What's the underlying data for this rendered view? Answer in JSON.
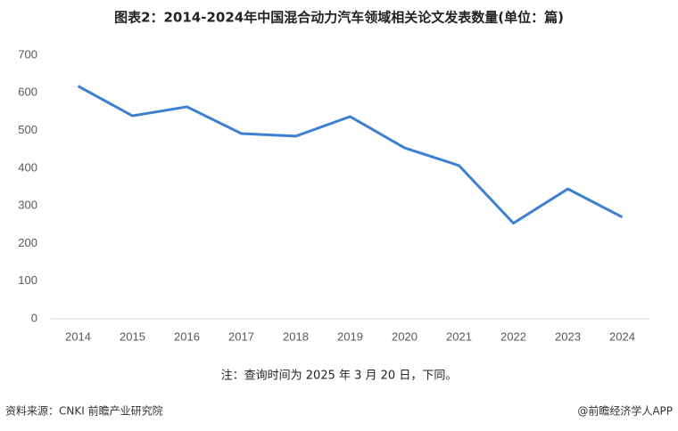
{
  "chart_data": {
    "type": "line",
    "title": "图表2：2014-2024年中国混合动力汽车领域相关论文发表数量(单位：篇)",
    "categories": [
      "2014",
      "2015",
      "2016",
      "2017",
      "2018",
      "2019",
      "2020",
      "2021",
      "2022",
      "2023",
      "2024"
    ],
    "series": [
      {
        "name": "论文发表数量",
        "color": "#3d7fd1",
        "values": [
          618,
          539,
          563,
          492,
          485,
          537,
          454,
          407,
          254,
          345,
          270
        ]
      }
    ],
    "ylim": [
      0,
      700
    ],
    "yticks": [
      0,
      100,
      200,
      300,
      400,
      500,
      600,
      700
    ],
    "note": "注：查询时间为 2025 年 3 月 20 日，下同。",
    "source": "资料来源：CNKI 前瞻产业研究院",
    "credit": "@前瞻经济学人APP"
  }
}
